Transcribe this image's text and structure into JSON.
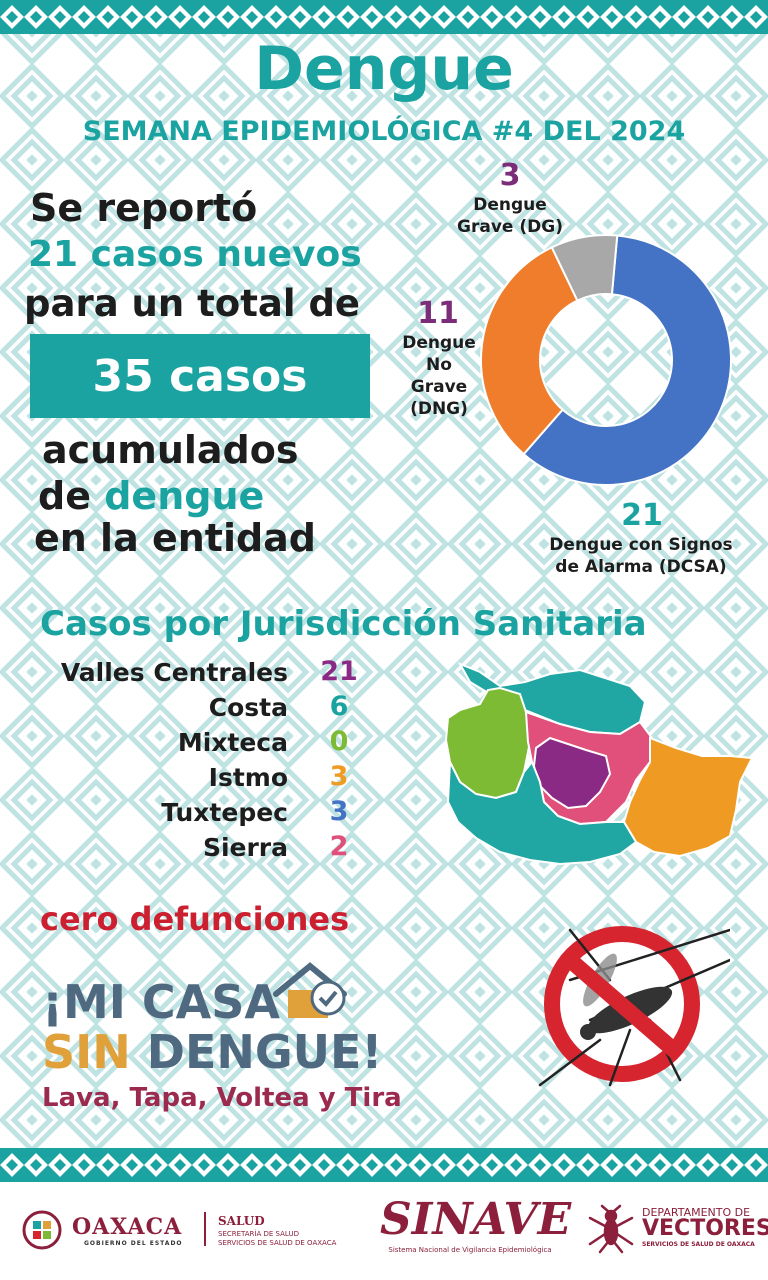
{
  "header": {
    "title": "Dengue",
    "subtitle": "SEMANA EPIDEMIOLÓGICA #4 DEL 2024"
  },
  "summary": {
    "line1": "Se reportó",
    "line2": "21 casos nuevos",
    "line3": "para un total de",
    "total_box": "35 casos",
    "line4": "acumulados",
    "line5_prefix": "de",
    "line5_highlight": "dengue",
    "line6": "en la entidad"
  },
  "donut": {
    "segments": [
      {
        "value": "3",
        "label_lines": [
          "Dengue",
          "Grave (DG)"
        ],
        "color": "#a8a8a8"
      },
      {
        "value": "11",
        "label_lines": [
          "Dengue",
          "No",
          "Grave",
          "(DNG)"
        ],
        "color": "#ef7d2c"
      },
      {
        "value": "21",
        "label_lines": [
          "Dengue con Signos",
          "de Alarma (DCSA)"
        ],
        "color": "#4472c4"
      }
    ],
    "value_colors": {
      "dg": "#7b2d7a",
      "dng": "#7b2d7a",
      "dcsa": "#1aa3a0"
    }
  },
  "jurisdictions": {
    "heading": "Casos por Jurisdicción Sanitaria",
    "items": [
      {
        "name": "Valles Centrales",
        "value": "21",
        "color": "#8b2a84"
      },
      {
        "name": "Costa",
        "value": "6",
        "color": "#1aa3a0"
      },
      {
        "name": "Mixteca",
        "value": "0",
        "color": "#7dbb35"
      },
      {
        "name": "Istmo",
        "value": "3",
        "color": "#ef9a22"
      },
      {
        "name": "Tuxtepec",
        "value": "3",
        "color": "#4472c4"
      },
      {
        "name": "Sierra",
        "value": "2",
        "color": "#e0507a"
      }
    ]
  },
  "deaths": "cero defunciones",
  "campaign": {
    "line1": "¡MI CASA",
    "line2_a": "SIN",
    "line2_b": " DENGUE!",
    "line3": "Lava, Tapa, Voltea y Tira",
    "color_sin": "#e0a03a"
  },
  "footer": {
    "oaxaca": "OAXACA",
    "oaxaca_sub": "GOBIERNO DEL ESTADO",
    "salud": "SALUD",
    "salud_sub1": "SECRETARÍA DE SALUD",
    "salud_sub2": "SERVICIOS DE SALUD DE OAXACA",
    "sinave": "SINAVE",
    "sinave_sub": "Sistema Nacional de Vigilancia Epidemiológica",
    "dep_line1": "DEPARTAMENTO DE",
    "dep_line2": "VECTORES",
    "dep_line3": "SERVICIOS DE SALUD DE OAXACA"
  }
}
